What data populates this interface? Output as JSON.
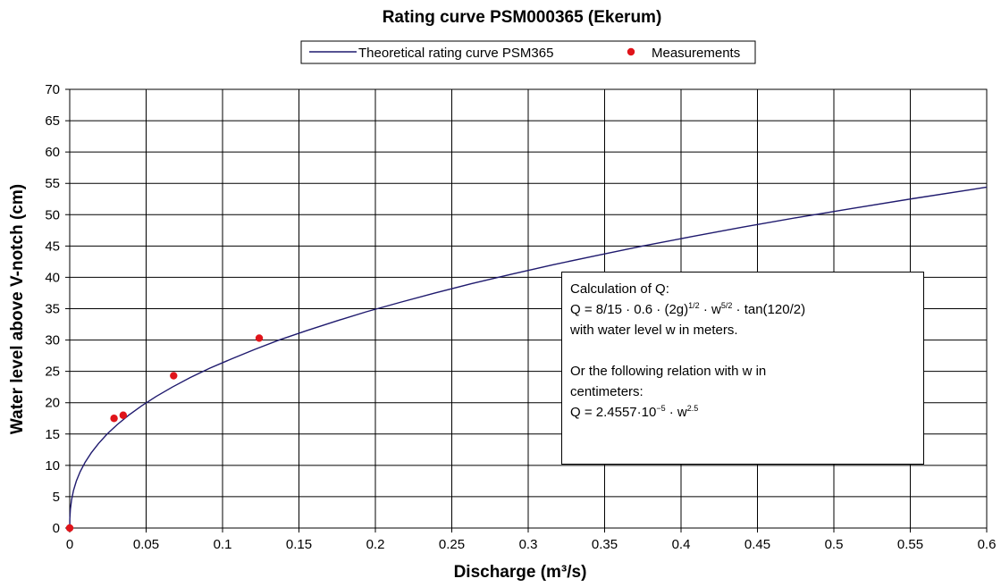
{
  "chart_data": {
    "type": "line",
    "title": "Rating curve PSM000365 (Ekerum)",
    "xlabel": "Discharge (m³/s)",
    "ylabel": "Water level above V-notch (cm)",
    "xlim": [
      0,
      0.6
    ],
    "ylim": [
      0,
      70
    ],
    "x_ticks": [
      "0",
      "0.05",
      "0.1",
      "0.15",
      "0.2",
      "0.25",
      "0.3",
      "0.35",
      "0.4",
      "0.45",
      "0.5",
      "0.55",
      "0.6"
    ],
    "y_ticks": [
      "0",
      "5",
      "10",
      "15",
      "20",
      "25",
      "30",
      "35",
      "40",
      "45",
      "50",
      "55",
      "60",
      "65",
      "70"
    ],
    "grid": true,
    "legend_position": "top",
    "series": [
      {
        "name": "Theoretical rating curve PSM365",
        "type": "line",
        "color": "#1f1a6e",
        "x": [
          0,
          7.77e-05,
          0.000439,
          0.00121,
          0.00248,
          0.00434,
          0.00685,
          0.0101,
          0.0141,
          0.0189,
          0.0245,
          0.0311,
          0.0386,
          0.0471,
          0.0566,
          0.0672,
          0.0788,
          0.0916,
          0.106,
          0.121,
          0.137,
          0.155,
          0.174,
          0.194,
          0.216,
          0.239,
          0.263,
          0.289,
          0.316,
          0.345,
          0.375,
          0.407,
          0.44,
          0.475,
          0.512,
          0.55,
          0.59,
          0.6
        ],
        "y": [
          0,
          1.5,
          3,
          4.5,
          6,
          7.5,
          9,
          10.5,
          12,
          13.5,
          15,
          16.5,
          18,
          19.5,
          21,
          22.5,
          24,
          25.5,
          27,
          28.5,
          30,
          31.5,
          33,
          34.5,
          36,
          37.5,
          39,
          40.5,
          42,
          43.5,
          45,
          46.5,
          48,
          49.5,
          51,
          52.5,
          54,
          54.4
        ]
      },
      {
        "name": "Measurements",
        "type": "scatter",
        "color": "#e0141a",
        "points": [
          {
            "x": 0,
            "y": 0
          },
          {
            "x": 0.029,
            "y": 17.5
          },
          {
            "x": 0.035,
            "y": 18
          },
          {
            "x": 0.068,
            "y": 24.3
          },
          {
            "x": 0.124,
            "y": 30.3
          }
        ]
      }
    ],
    "annotation": {
      "lines": [
        [
          {
            "t": "Calculation of Q:"
          }
        ],
        [
          {
            "t": "Q = 8/15 · 0.6 · (2g)"
          },
          {
            "t": "1/2",
            "sup": true
          },
          {
            "t": " · w"
          },
          {
            "t": "5/2",
            "sup": true
          },
          {
            "t": " · tan(120/2)"
          }
        ],
        [
          {
            "t": "with water level w in meters."
          }
        ],
        [
          {
            "t": ""
          }
        ],
        [
          {
            "t": "Or the following relation with w in"
          }
        ],
        [
          {
            "t": "centimeters:"
          }
        ],
        [
          {
            "t": "Q = 2.4557·10"
          },
          {
            "t": "−5",
            "sup": true
          },
          {
            "t": " · w"
          },
          {
            "t": "2.5",
            "sup": true
          }
        ]
      ]
    }
  }
}
